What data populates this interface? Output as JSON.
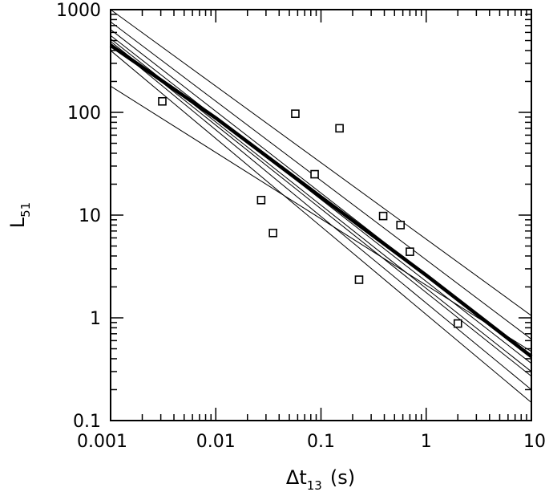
{
  "chart_data": {
    "type": "scatter",
    "title": "",
    "xlabel": {
      "main": "Δt",
      "sub": "13",
      "unit": "(s)"
    },
    "ylabel": {
      "main": "L",
      "sub": "51"
    },
    "x_scale": "log",
    "y_scale": "log",
    "xlim": [
      0.001,
      10
    ],
    "ylim": [
      0.1,
      1000
    ],
    "x_tick_labels": [
      "0.001",
      "0.01",
      "0.1",
      "1",
      "10"
    ],
    "y_tick_labels": [
      "0.1",
      "1",
      "10",
      "100",
      "1000"
    ],
    "grid": false,
    "legend": "none",
    "colors": {
      "axes": "#000000",
      "data": "#000000"
    },
    "points": [
      {
        "x": 0.0031,
        "y": 128
      },
      {
        "x": 0.027,
        "y": 14
      },
      {
        "x": 0.035,
        "y": 6.7
      },
      {
        "x": 0.057,
        "y": 97
      },
      {
        "x": 0.087,
        "y": 25
      },
      {
        "x": 0.15,
        "y": 70
      },
      {
        "x": 0.23,
        "y": 2.35
      },
      {
        "x": 0.39,
        "y": 9.8
      },
      {
        "x": 0.57,
        "y": 8
      },
      {
        "x": 0.7,
        "y": 4.4
      },
      {
        "x": 2.0,
        "y": 0.88
      }
    ],
    "fit_lines": [
      {
        "y_at_xmin": 1000,
        "y_at_xmax": 1.05
      },
      {
        "y_at_xmin": 760,
        "y_at_xmax": 0.62
      },
      {
        "y_at_xmin": 640,
        "y_at_xmax": 0.42
      },
      {
        "y_at_xmin": 560,
        "y_at_xmax": 0.36
      },
      {
        "y_at_xmin": 520,
        "y_at_xmax": 0.3
      },
      {
        "y_at_xmin": 490,
        "y_at_xmax": 0.27
      },
      {
        "y_at_xmin": 470,
        "y_at_xmax": 0.2
      },
      {
        "y_at_xmin": 400,
        "y_at_xmax": 0.15
      },
      {
        "y_at_xmin": 180,
        "y_at_xmax": 0.47
      }
    ],
    "best_fit": [
      {
        "x": 0.001,
        "y": 450
      },
      {
        "x": 0.01,
        "y": 88
      },
      {
        "x": 0.1,
        "y": 15
      },
      {
        "x": 1,
        "y": 2.6
      },
      {
        "x": 10,
        "y": 0.42
      }
    ]
  }
}
